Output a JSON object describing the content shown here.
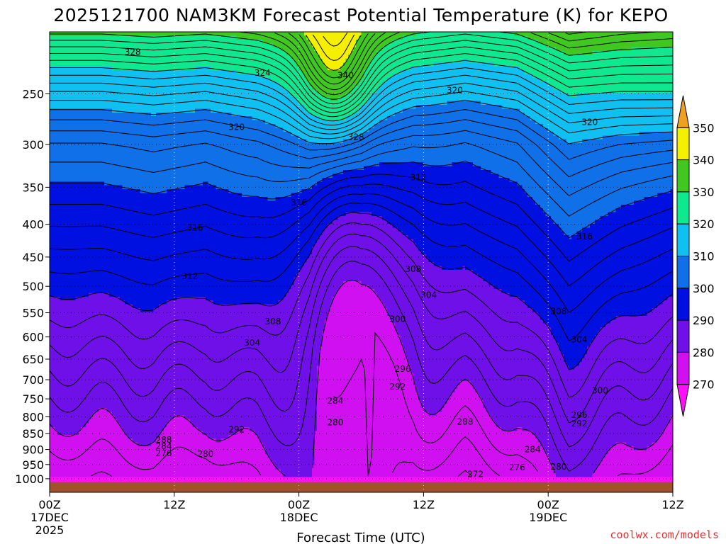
{
  "chart_data": {
    "type": "heatmap",
    "subtype": "time-height cross section (filled contours)",
    "title": "2025121700 NAM3KM Forecast Potential Temperature (K) for KEPO",
    "xlabel": "Forecast Time (UTC)",
    "ylabel": "",
    "y_axis": {
      "units": "hPa",
      "scale": "log",
      "range": [
        1050,
        200
      ],
      "ticks": [
        250,
        300,
        350,
        400,
        450,
        500,
        550,
        600,
        650,
        700,
        750,
        800,
        850,
        900,
        950,
        1000
      ]
    },
    "x_axis": {
      "units": "forecast hour",
      "range": [
        0,
        60
      ],
      "ticks": [
        {
          "hour": 0,
          "label": "00Z",
          "date": "17DEC",
          "year": "2025"
        },
        {
          "hour": 12,
          "label": "12Z",
          "date": "",
          "year": ""
        },
        {
          "hour": 24,
          "label": "00Z",
          "date": "18DEC",
          "year": ""
        },
        {
          "hour": 36,
          "label": "12Z",
          "date": "",
          "year": ""
        },
        {
          "hour": 48,
          "label": "00Z",
          "date": "19DEC",
          "year": ""
        },
        {
          "hour": 60,
          "label": "12Z",
          "date": "",
          "year": ""
        }
      ]
    },
    "colorbar": {
      "units": "K",
      "labels": [
        350,
        340,
        330,
        320,
        310,
        300,
        290,
        280,
        270
      ],
      "bins": [
        {
          "lo": 350,
          "hi": 360,
          "color": "#f0a020"
        },
        {
          "lo": 340,
          "hi": 350,
          "color": "#f4f000"
        },
        {
          "lo": 330,
          "hi": 340,
          "color": "#40c820"
        },
        {
          "lo": 320,
          "hi": 330,
          "color": "#10e890"
        },
        {
          "lo": 310,
          "hi": 320,
          "color": "#10c0f0"
        },
        {
          "lo": 300,
          "hi": 310,
          "color": "#1070e8"
        },
        {
          "lo": 290,
          "hi": 300,
          "color": "#0010e0"
        },
        {
          "lo": 280,
          "hi": 290,
          "color": "#7010e8"
        },
        {
          "lo": 270,
          "hi": 280,
          "color": "#d010f0"
        },
        {
          "lo": 260,
          "hi": 270,
          "color": "#ff10f8"
        }
      ]
    },
    "ground_color": "#a0522d",
    "contour_interval_K": 2,
    "surface_theta_K": [
      276,
      276,
      277,
      276,
      278,
      282,
      281,
      276,
      274,
      276,
      281,
      278,
      276
    ],
    "contour_labels": [
      {
        "value": "328",
        "hour": 8,
        "pres": 215
      },
      {
        "value": "324",
        "hour": 20.5,
        "pres": 232
      },
      {
        "value": "340",
        "hour": 28.5,
        "pres": 234
      },
      {
        "value": "320",
        "hour": 39,
        "pres": 247
      },
      {
        "value": "320",
        "hour": 18,
        "pres": 282
      },
      {
        "value": "328",
        "hour": 29.5,
        "pres": 292
      },
      {
        "value": "320",
        "hour": 52,
        "pres": 277
      },
      {
        "value": "312",
        "hour": 35.5,
        "pres": 338
      },
      {
        "value": "316",
        "hour": 24,
        "pres": 370
      },
      {
        "value": "316",
        "hour": 14,
        "pres": 405
      },
      {
        "value": "316",
        "hour": 51.5,
        "pres": 418
      },
      {
        "value": "308",
        "hour": 35,
        "pres": 470
      },
      {
        "value": "312",
        "hour": 13.5,
        "pres": 482
      },
      {
        "value": "304",
        "hour": 36.5,
        "pres": 516
      },
      {
        "value": "308",
        "hour": 21.5,
        "pres": 568
      },
      {
        "value": "300",
        "hour": 33.5,
        "pres": 563
      },
      {
        "value": "308",
        "hour": 49,
        "pres": 547
      },
      {
        "value": "304",
        "hour": 19.5,
        "pres": 613
      },
      {
        "value": "304",
        "hour": 51,
        "pres": 606
      },
      {
        "value": "296",
        "hour": 34,
        "pres": 674
      },
      {
        "value": "292",
        "hour": 33.5,
        "pres": 718
      },
      {
        "value": "300",
        "hour": 53,
        "pres": 728
      },
      {
        "value": "284",
        "hour": 27.5,
        "pres": 756
      },
      {
        "value": "296",
        "hour": 51,
        "pres": 795
      },
      {
        "value": "288",
        "hour": 40,
        "pres": 815
      },
      {
        "value": "292",
        "hour": 51,
        "pres": 820
      },
      {
        "value": "280",
        "hour": 27.5,
        "pres": 817
      },
      {
        "value": "292",
        "hour": 18,
        "pres": 838
      },
      {
        "value": "288",
        "hour": 11,
        "pres": 869
      },
      {
        "value": "284",
        "hour": 11,
        "pres": 890
      },
      {
        "value": "276",
        "hour": 11,
        "pres": 912
      },
      {
        "value": "280",
        "hour": 15,
        "pres": 915
      },
      {
        "value": "284",
        "hour": 46.5,
        "pres": 900
      },
      {
        "value": "276",
        "hour": 45,
        "pres": 960
      },
      {
        "value": "280",
        "hour": 49,
        "pres": 958
      },
      {
        "value": "272",
        "hour": 41,
        "pres": 984
      }
    ]
  },
  "credit": "coolwx.com/models"
}
